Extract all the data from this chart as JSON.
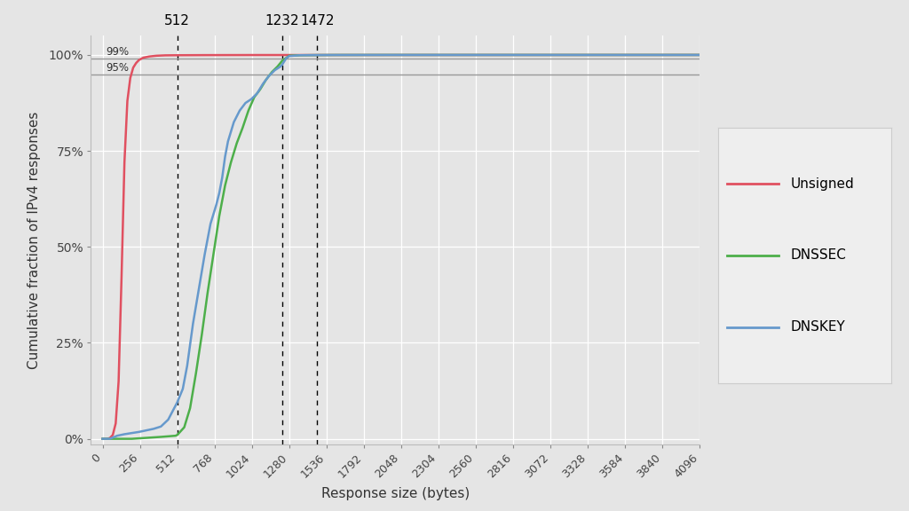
{
  "xlabel": "Response size (bytes)",
  "ylabel": "Cumulative fraction of IPv4 responses",
  "bg_color": "#e5e5e5",
  "plot_bg_color": "#e5e5e5",
  "x_min": -80,
  "x_max": 4096,
  "y_min": -0.015,
  "y_max": 1.05,
  "x_ticks": [
    0,
    256,
    512,
    768,
    1024,
    1280,
    1536,
    1792,
    2048,
    2304,
    2560,
    2816,
    3072,
    3328,
    3584,
    3840,
    4096
  ],
  "y_ticks": [
    0.0,
    0.25,
    0.5,
    0.75,
    1.0
  ],
  "y_tick_labels": [
    "0%",
    "25%",
    "50%",
    "75%",
    "100%"
  ],
  "vlines": [
    512,
    1232,
    1472
  ],
  "vline_labels": [
    "512",
    "1232",
    "1472"
  ],
  "hlines": [
    0.99,
    0.95
  ],
  "hline_labels": [
    "99%",
    "95%"
  ],
  "line_colors": [
    "#e05060",
    "#4daf4a",
    "#6699cc"
  ],
  "line_labels": [
    "Unsigned",
    "DNSSEC",
    "DNSKEY"
  ],
  "unsigned_x": [
    0,
    30,
    50,
    70,
    90,
    110,
    130,
    150,
    170,
    190,
    210,
    230,
    250,
    280,
    320,
    370,
    430,
    512,
    700,
    1000,
    2000,
    4096
  ],
  "unsigned_y": [
    0.0,
    0.0,
    0.002,
    0.01,
    0.04,
    0.15,
    0.42,
    0.72,
    0.88,
    0.94,
    0.967,
    0.979,
    0.987,
    0.993,
    0.996,
    0.998,
    0.999,
    0.9993,
    0.9996,
    0.9998,
    0.9999,
    1.0
  ],
  "dnssec_x": [
    0,
    200,
    400,
    500,
    512,
    560,
    600,
    640,
    680,
    720,
    760,
    800,
    840,
    880,
    920,
    960,
    1000,
    1040,
    1080,
    1120,
    1160,
    1200,
    1232,
    1280,
    1350,
    1472,
    1600,
    2000,
    4096
  ],
  "dnssec_y": [
    0.0,
    0.0,
    0.005,
    0.008,
    0.01,
    0.03,
    0.08,
    0.17,
    0.27,
    0.38,
    0.48,
    0.58,
    0.66,
    0.72,
    0.77,
    0.81,
    0.855,
    0.89,
    0.91,
    0.935,
    0.955,
    0.97,
    0.985,
    0.998,
    0.9993,
    0.9997,
    0.9999,
    1.0,
    1.0
  ],
  "dnskey_x": [
    0,
    50,
    100,
    150,
    200,
    250,
    300,
    350,
    400,
    450,
    512,
    550,
    580,
    620,
    660,
    700,
    740,
    780,
    800,
    820,
    840,
    860,
    880,
    900,
    940,
    980,
    1020,
    1060,
    1100,
    1140,
    1180,
    1220,
    1232,
    1260,
    1280,
    1350,
    1472,
    1600,
    2000,
    4096
  ],
  "dnskey_y": [
    0.0,
    0.0,
    0.008,
    0.012,
    0.015,
    0.018,
    0.022,
    0.026,
    0.032,
    0.05,
    0.095,
    0.13,
    0.19,
    0.3,
    0.39,
    0.48,
    0.56,
    0.61,
    0.64,
    0.68,
    0.735,
    0.775,
    0.8,
    0.825,
    0.855,
    0.875,
    0.885,
    0.9,
    0.925,
    0.945,
    0.96,
    0.97,
    0.975,
    0.992,
    0.997,
    0.9993,
    0.9997,
    0.9999,
    1.0,
    1.0
  ]
}
